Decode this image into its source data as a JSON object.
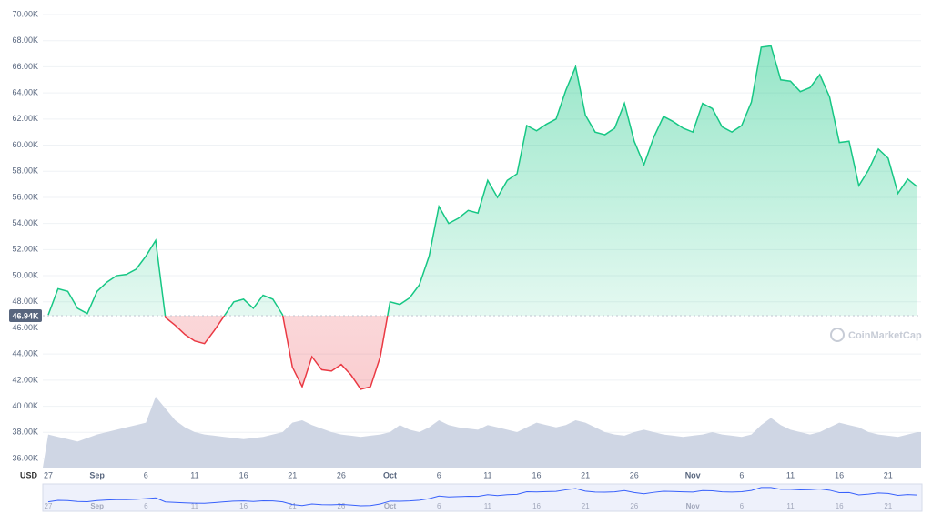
{
  "chart_data": {
    "type": "line",
    "currency": "USD",
    "watermark": "CoinMarketCap",
    "baseline": {
      "value": 46940,
      "label": "46.94K"
    },
    "up_color": "#16c784",
    "down_color": "#ea3943",
    "volume_color": "#cfd6e4",
    "grid": true,
    "categories": [
      "27",
      null,
      null,
      null,
      null,
      "Sep",
      null,
      null,
      null,
      null,
      "6",
      null,
      null,
      null,
      null,
      "11",
      null,
      null,
      null,
      null,
      "16",
      null,
      null,
      null,
      null,
      "21",
      null,
      null,
      null,
      null,
      "26",
      null,
      null,
      null,
      null,
      "Oct",
      null,
      null,
      null,
      null,
      "6",
      null,
      null,
      null,
      null,
      "11",
      null,
      null,
      null,
      null,
      "16",
      null,
      null,
      null,
      null,
      "21",
      null,
      null,
      null,
      null,
      "26",
      null,
      null,
      null,
      null,
      null,
      "Nov",
      null,
      null,
      null,
      null,
      "6",
      null,
      null,
      null,
      null,
      "11",
      null,
      null,
      null,
      null,
      "16",
      null,
      null,
      null,
      null,
      "21",
      null,
      null,
      null
    ],
    "values": [
      47000,
      49000,
      48800,
      47500,
      47100,
      48800,
      49500,
      50000,
      50100,
      50500,
      51500,
      52700,
      46800,
      46200,
      45500,
      45000,
      44800,
      45800,
      46900,
      48000,
      48200,
      47500,
      48500,
      48200,
      47000,
      43000,
      41500,
      43800,
      42800,
      42700,
      43200,
      42400,
      41300,
      41500,
      43800,
      48000,
      47800,
      48300,
      49300,
      51500,
      55300,
      54000,
      54400,
      55000,
      54800,
      57300,
      56000,
      57300,
      57800,
      61500,
      61100,
      61600,
      62000,
      64200,
      66000,
      62300,
      61000,
      60800,
      61300,
      63200,
      60300,
      58500,
      60600,
      62200,
      61800,
      61300,
      61000,
      63200,
      62800,
      61400,
      61000,
      61500,
      63300,
      67500,
      67600,
      65000,
      64900,
      64100,
      64400,
      65400,
      63700,
      60200,
      60300,
      56900,
      58100,
      59700,
      59000,
      56300,
      57400,
      56800
    ],
    "volume": [
      28,
      26,
      24,
      22,
      25,
      28,
      30,
      32,
      34,
      36,
      38,
      60,
      50,
      40,
      34,
      30,
      28,
      27,
      26,
      25,
      24,
      25,
      26,
      28,
      30,
      38,
      40,
      36,
      33,
      30,
      28,
      27,
      26,
      27,
      28,
      30,
      36,
      32,
      30,
      34,
      40,
      36,
      34,
      33,
      32,
      36,
      34,
      32,
      30,
      34,
      38,
      36,
      34,
      36,
      40,
      38,
      34,
      30,
      28,
      27,
      30,
      32,
      30,
      28,
      27,
      26,
      27,
      28,
      30,
      28,
      27,
      26,
      28,
      36,
      42,
      36,
      32,
      30,
      28,
      30,
      34,
      38,
      36,
      34,
      30,
      28,
      27,
      26,
      28,
      30
    ],
    "ylim": [
      36000,
      70000
    ],
    "yticks": [
      {
        "value": 36000,
        "label": "36.00K"
      },
      {
        "value": 38000,
        "label": "38.00K"
      },
      {
        "value": 40000,
        "label": "40.00K"
      },
      {
        "value": 42000,
        "label": "42.00K"
      },
      {
        "value": 44000,
        "label": "44.00K"
      },
      {
        "value": 46000,
        "label": "46.00K"
      },
      {
        "value": 48000,
        "label": "48.00K"
      },
      {
        "value": 50000,
        "label": "50.00K"
      },
      {
        "value": 52000,
        "label": "52.00K"
      },
      {
        "value": 54000,
        "label": "54.00K"
      },
      {
        "value": 56000,
        "label": "56.00K"
      },
      {
        "value": 58000,
        "label": "58.00K"
      },
      {
        "value": 60000,
        "label": "60.00K"
      },
      {
        "value": 62000,
        "label": "62.00K"
      },
      {
        "value": 64000,
        "label": "64.00K"
      },
      {
        "value": 66000,
        "label": "66.00K"
      },
      {
        "value": 68000,
        "label": "68.00K"
      },
      {
        "value": 70000,
        "label": "70.00K"
      }
    ]
  }
}
